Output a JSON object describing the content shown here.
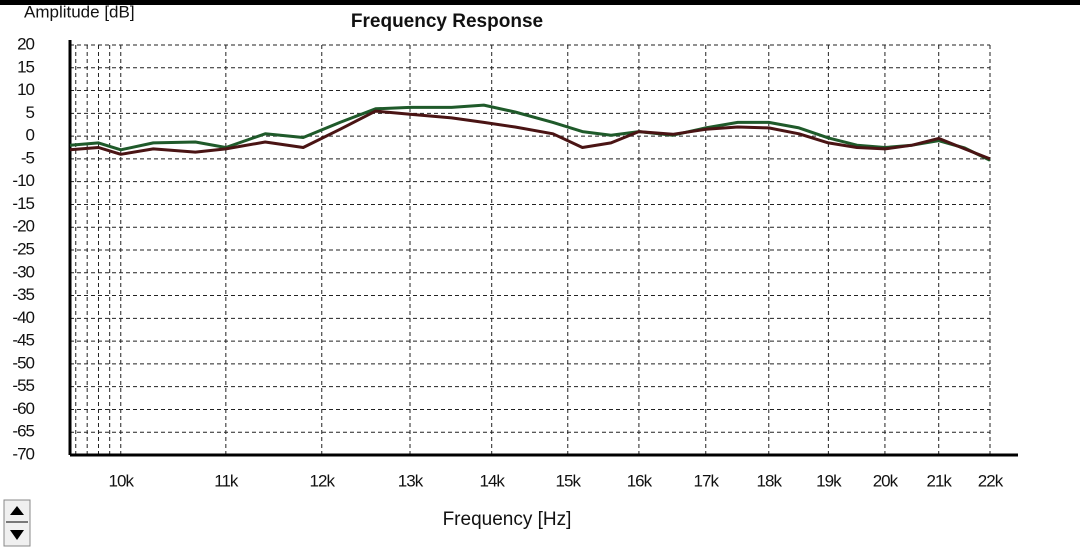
{
  "chart_data": {
    "type": "line",
    "title": "Frequency Response",
    "y_label": "Amplitude [dB]",
    "x_label": "Frequency [Hz]",
    "x_scale": "log",
    "grid": true,
    "xlim": [
      9550,
      22000
    ],
    "ylim": [
      -70,
      20
    ],
    "xticks": [
      {
        "value": 10000,
        "label": "10k"
      },
      {
        "value": 11000,
        "label": "11k"
      },
      {
        "value": 12000,
        "label": "12k"
      },
      {
        "value": 13000,
        "label": "13k"
      },
      {
        "value": 14000,
        "label": "14k"
      },
      {
        "value": 15000,
        "label": "15k"
      },
      {
        "value": 16000,
        "label": "16k"
      },
      {
        "value": 17000,
        "label": "17k"
      },
      {
        "value": 18000,
        "label": "18k"
      },
      {
        "value": 19000,
        "label": "19k"
      },
      {
        "value": 20000,
        "label": "20k"
      },
      {
        "value": 21000,
        "label": "21k"
      },
      {
        "value": 22000,
        "label": "22k"
      }
    ],
    "x_minor_ticks": [
      9600,
      9700,
      9800,
      9900
    ],
    "yticks": [
      20,
      15,
      10,
      5,
      0,
      -5,
      -10,
      -15,
      -20,
      -25,
      -30,
      -35,
      -40,
      -45,
      -50,
      -55,
      -60,
      -65,
      -70
    ],
    "x": [
      9550,
      9800,
      10000,
      10300,
      10700,
      11000,
      11400,
      11800,
      12200,
      12600,
      13000,
      13500,
      13900,
      14300,
      14800,
      15200,
      15600,
      16000,
      16500,
      17000,
      17500,
      18000,
      18500,
      19000,
      19500,
      20000,
      20500,
      21000,
      21500,
      22000
    ],
    "series": [
      {
        "color": "#1f5a2a",
        "values": [
          -2,
          -1.5,
          -3,
          -1.5,
          -1.3,
          -2.5,
          0.5,
          -0.3,
          3,
          6,
          6.3,
          6.3,
          6.8,
          5.3,
          3,
          1,
          0.2,
          1,
          0.2,
          1.8,
          3,
          3,
          1.8,
          -0.4,
          -2,
          -2.5,
          -2,
          -1,
          -2.6,
          -5.3
        ]
      },
      {
        "color": "#4a1414",
        "values": [
          -3,
          -2.5,
          -4,
          -2.8,
          -3.5,
          -2.8,
          -1.3,
          -2.5,
          1.5,
          5.5,
          4.8,
          4,
          3,
          2,
          0.5,
          -2.5,
          -1.5,
          1,
          0.4,
          1.5,
          2,
          1.8,
          0.5,
          -1.5,
          -2.5,
          -2.8,
          -2,
          -0.5,
          -2.8,
          -5
        ]
      }
    ]
  }
}
